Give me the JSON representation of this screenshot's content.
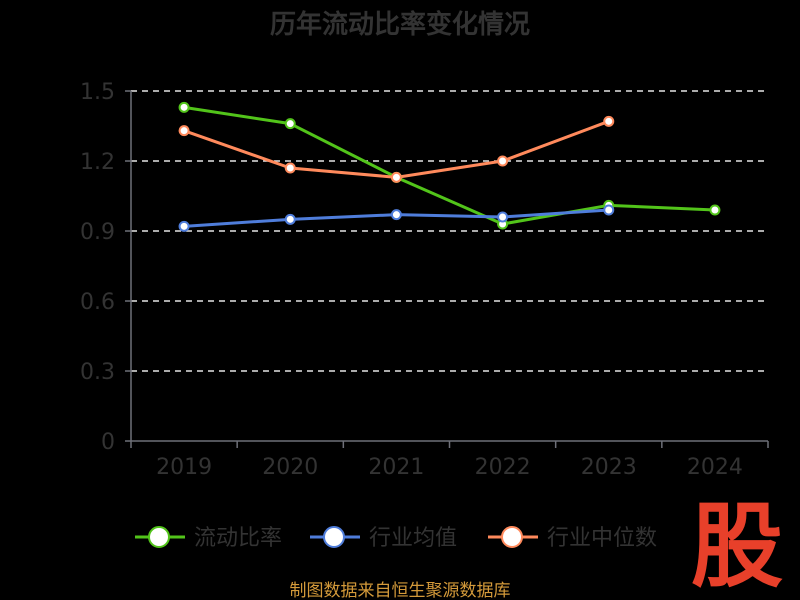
{
  "chart_data": {
    "type": "line",
    "title": "历年流动比率变化情况",
    "categories": [
      "2019",
      "2020",
      "2021",
      "2022",
      "2023",
      "2024"
    ],
    "ylim": [
      0,
      1.5
    ],
    "yticks": [
      "0",
      "0.3",
      "0.6",
      "0.9",
      "1.2",
      "1.5"
    ],
    "grid": true,
    "legend_position": "bottom",
    "series": [
      {
        "name": "流动比率",
        "color": "#52c41a",
        "values": [
          1.43,
          1.36,
          1.13,
          0.93,
          1.01,
          0.99
        ]
      },
      {
        "name": "行业均值",
        "color": "#4f7ddb",
        "values": [
          0.92,
          0.95,
          0.97,
          0.96,
          0.99,
          null
        ]
      },
      {
        "name": "行业中位数",
        "color": "#ff8a5c",
        "values": [
          1.33,
          1.17,
          1.13,
          1.2,
          1.37,
          null
        ]
      }
    ]
  },
  "footer": {
    "source": "制图数据来自恒生聚源数据库"
  },
  "logo": {
    "text": "股"
  }
}
